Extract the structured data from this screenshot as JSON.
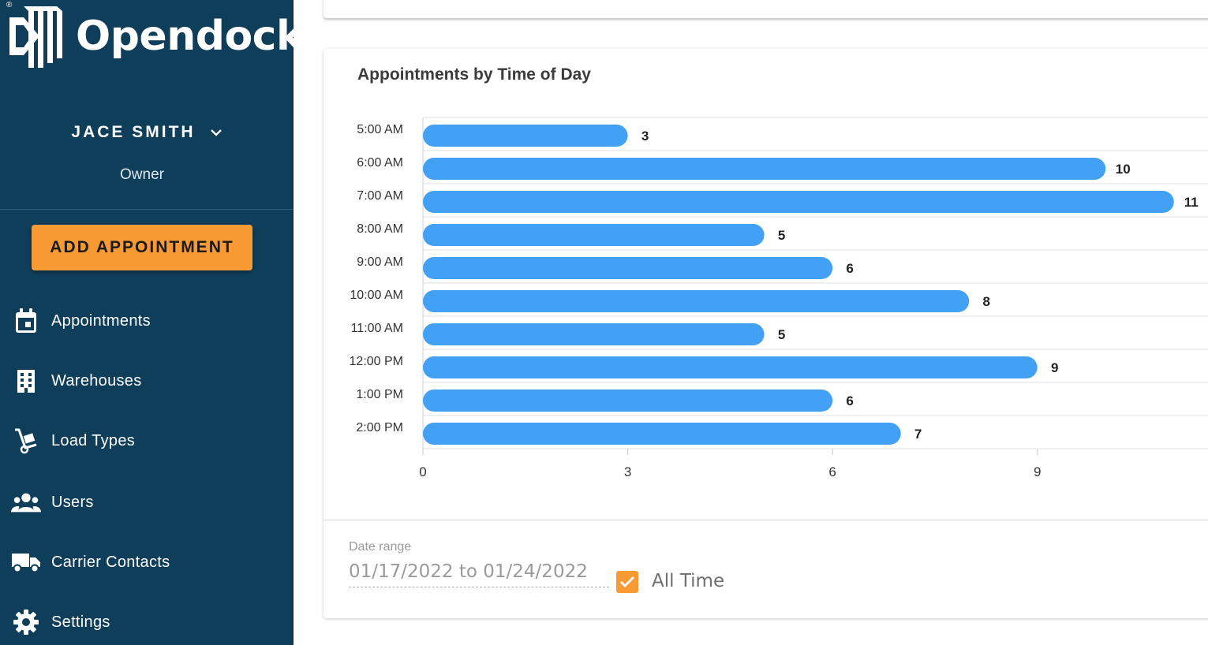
{
  "brand": {
    "name": "Opendock",
    "reg_mark": "®"
  },
  "user": {
    "name": "JACE SMITH",
    "role": "Owner"
  },
  "sidebar": {
    "cta_label": "ADD APPOINTMENT",
    "items": [
      {
        "label": "Appointments",
        "icon": "calendar-icon"
      },
      {
        "label": "Warehouses",
        "icon": "building-icon"
      },
      {
        "label": "Load Types",
        "icon": "hand-truck-icon"
      },
      {
        "label": "Users",
        "icon": "users-icon"
      },
      {
        "label": "Carrier Contacts",
        "icon": "truck-icon"
      },
      {
        "label": "Settings",
        "icon": "gear-icon"
      }
    ]
  },
  "colors": {
    "sidebar_bg": "#0f3e5a",
    "accent": "#f89a33",
    "bar": "#42a1f5"
  },
  "chart_data": {
    "type": "bar",
    "orientation": "horizontal",
    "title": "Appointments by Time of Day",
    "categories": [
      "5:00 AM",
      "6:00 AM",
      "7:00 AM",
      "8:00 AM",
      "9:00 AM",
      "10:00 AM",
      "11:00 AM",
      "12:00 PM",
      "1:00 PM",
      "2:00 PM"
    ],
    "values": [
      3,
      10,
      11,
      5,
      6,
      8,
      5,
      9,
      6,
      7
    ],
    "x_ticks": [
      0,
      3,
      6,
      9
    ],
    "xlim": [
      0,
      11.5
    ],
    "grid": true,
    "data_labels": true
  },
  "filters": {
    "date_range_label": "Date range",
    "date_range_value": "01/17/2022 to 01/24/2022",
    "all_time_label": "All Time",
    "all_time_checked": true
  }
}
